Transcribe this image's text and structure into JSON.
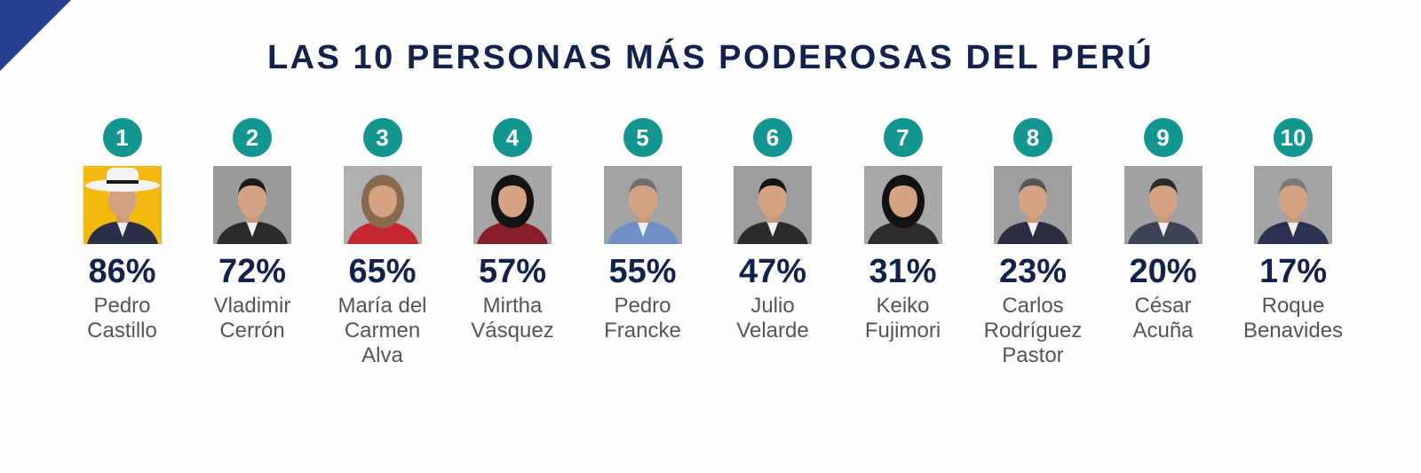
{
  "title": "LAS 10 PERSONAS MÁS PODEROSAS DEL PERÚ",
  "colors": {
    "title": "#13224d",
    "badge": "#13968f",
    "name": "#555555",
    "corner": "#25408f"
  },
  "chart_data": {
    "type": "table",
    "title": "LAS 10 PERSONAS MÁS PODEROSAS DEL PERÚ",
    "columns": [
      "rank",
      "percent",
      "name"
    ],
    "rows": [
      {
        "rank": "1",
        "percent": "86%",
        "value": 86,
        "name": "Pedro\nCastillo"
      },
      {
        "rank": "2",
        "percent": "72%",
        "value": 72,
        "name": "Vladimir\nCerrón"
      },
      {
        "rank": "3",
        "percent": "65%",
        "value": 65,
        "name": "María del\nCarmen\nAlva"
      },
      {
        "rank": "4",
        "percent": "57%",
        "value": 57,
        "name": "Mirtha\nVásquez"
      },
      {
        "rank": "5",
        "percent": "55%",
        "value": 55,
        "name": "Pedro\nFrancke"
      },
      {
        "rank": "6",
        "percent": "47%",
        "value": 47,
        "name": "Julio\nVelarde"
      },
      {
        "rank": "7",
        "percent": "31%",
        "value": 31,
        "name": "Keiko\nFujimori"
      },
      {
        "rank": "8",
        "percent": "23%",
        "value": 23,
        "name": "Carlos\nRodríguez\nPastor"
      },
      {
        "rank": "9",
        "percent": "20%",
        "value": 20,
        "name": "César\nAcuña"
      },
      {
        "rank": "10",
        "percent": "17%",
        "value": 17,
        "name": "Roque\nBenavides"
      }
    ]
  }
}
